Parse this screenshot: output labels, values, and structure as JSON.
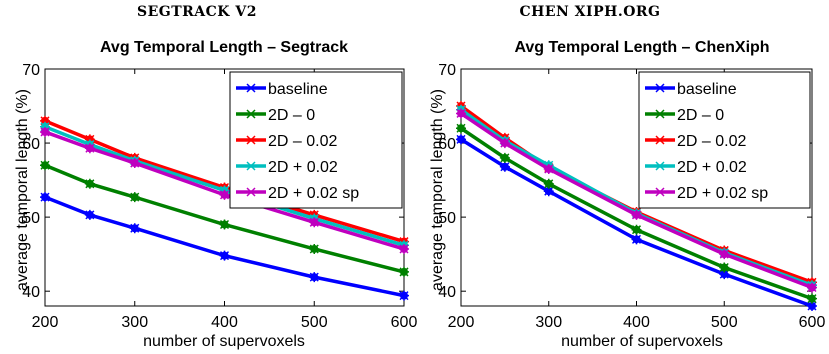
{
  "panels": [
    {
      "heading": "SEGTRACK V2"
    },
    {
      "heading": "CHEN XIPH.ORG"
    }
  ],
  "chart_data": [
    {
      "type": "line",
      "title": "Avg Temporal Length – Segtrack",
      "xlabel": "number of supervoxels",
      "ylabel": "average temporal length (%)",
      "xlim": [
        200,
        600
      ],
      "ylim": [
        38,
        70
      ],
      "xticks": [
        200,
        300,
        400,
        500,
        600
      ],
      "yticks": [
        40,
        50,
        60,
        70
      ],
      "grid": false,
      "legend_position": "top-right",
      "x": [
        200,
        250,
        300,
        400,
        500,
        600
      ],
      "series": [
        {
          "name": "baseline",
          "color": "#0000ff",
          "values": [
            52.7,
            50.3,
            48.5,
            44.8,
            41.9,
            39.4
          ]
        },
        {
          "name": "2D – 0",
          "color": "#008000",
          "values": [
            57.0,
            54.5,
            52.7,
            49.0,
            45.7,
            42.6
          ]
        },
        {
          "name": "2D – 0.02",
          "color": "#ff0000",
          "values": [
            63.0,
            60.5,
            58.0,
            54.0,
            50.3,
            46.7
          ]
        },
        {
          "name": "2D + 0.02",
          "color": "#00bfbf",
          "values": [
            62.2,
            59.8,
            57.6,
            53.6,
            49.8,
            46.2
          ]
        },
        {
          "name": "2D + 0.02 sp",
          "color": "#bf00bf",
          "values": [
            61.5,
            59.3,
            57.3,
            53.0,
            49.3,
            45.7
          ]
        }
      ]
    },
    {
      "type": "line",
      "title": "Avg Temporal Length – ChenXiph",
      "xlabel": "number of supervoxels",
      "ylabel": "average temporal length (%)",
      "xlim": [
        200,
        600
      ],
      "ylim": [
        38,
        70
      ],
      "xticks": [
        200,
        300,
        400,
        500,
        600
      ],
      "yticks": [
        40,
        50,
        60,
        70
      ],
      "grid": false,
      "legend_position": "top-right",
      "x": [
        200,
        250,
        300,
        400,
        500,
        600
      ],
      "series": [
        {
          "name": "baseline",
          "color": "#0000ff",
          "values": [
            60.5,
            56.8,
            53.5,
            47.0,
            42.3,
            38.0
          ]
        },
        {
          "name": "2D – 0",
          "color": "#008000",
          "values": [
            62.0,
            58.0,
            54.5,
            48.3,
            43.2,
            39.0
          ]
        },
        {
          "name": "2D – 0.02",
          "color": "#ff0000",
          "values": [
            65.0,
            60.7,
            56.7,
            50.7,
            45.5,
            41.2
          ]
        },
        {
          "name": "2D + 0.02",
          "color": "#00bfbf",
          "values": [
            64.5,
            60.3,
            57.0,
            50.5,
            45.2,
            40.8
          ]
        },
        {
          "name": "2D + 0.02 sp",
          "color": "#bf00bf",
          "values": [
            64.0,
            60.0,
            56.5,
            50.3,
            45.0,
            40.5
          ]
        }
      ]
    }
  ]
}
